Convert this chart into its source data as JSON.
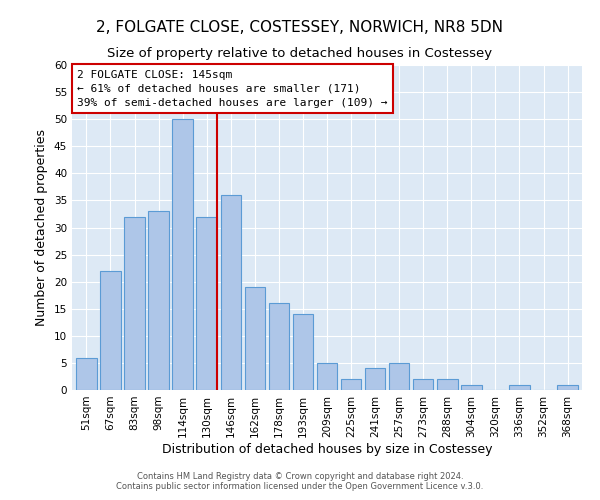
{
  "title": "2, FOLGATE CLOSE, COSTESSEY, NORWICH, NR8 5DN",
  "subtitle": "Size of property relative to detached houses in Costessey",
  "xlabel": "Distribution of detached houses by size in Costessey",
  "ylabel": "Number of detached properties",
  "bar_labels": [
    "51sqm",
    "67sqm",
    "83sqm",
    "98sqm",
    "114sqm",
    "130sqm",
    "146sqm",
    "162sqm",
    "178sqm",
    "193sqm",
    "209sqm",
    "225sqm",
    "241sqm",
    "257sqm",
    "273sqm",
    "288sqm",
    "304sqm",
    "320sqm",
    "336sqm",
    "352sqm",
    "368sqm"
  ],
  "bar_heights": [
    6,
    22,
    32,
    33,
    50,
    32,
    36,
    19,
    16,
    14,
    5,
    2,
    4,
    5,
    2,
    2,
    1,
    0,
    1,
    0,
    1
  ],
  "bar_color": "#aec6e8",
  "bar_edge_color": "#5b9bd5",
  "vline_color": "#cc0000",
  "ylim": [
    0,
    60
  ],
  "yticks": [
    0,
    5,
    10,
    15,
    20,
    25,
    30,
    35,
    40,
    45,
    50,
    55,
    60
  ],
  "annotation_title": "2 FOLGATE CLOSE: 145sqm",
  "annotation_line1": "← 61% of detached houses are smaller (171)",
  "annotation_line2": "39% of semi-detached houses are larger (109) →",
  "annotation_box_color": "#ffffff",
  "annotation_box_edge": "#cc0000",
  "footer1": "Contains HM Land Registry data © Crown copyright and database right 2024.",
  "footer2": "Contains public sector information licensed under the Open Government Licence v.3.0.",
  "title_fontsize": 11,
  "subtitle_fontsize": 9.5,
  "tick_fontsize": 7.5,
  "ylabel_fontsize": 9,
  "xlabel_fontsize": 9,
  "annotation_fontsize": 8,
  "footer_fontsize": 6
}
